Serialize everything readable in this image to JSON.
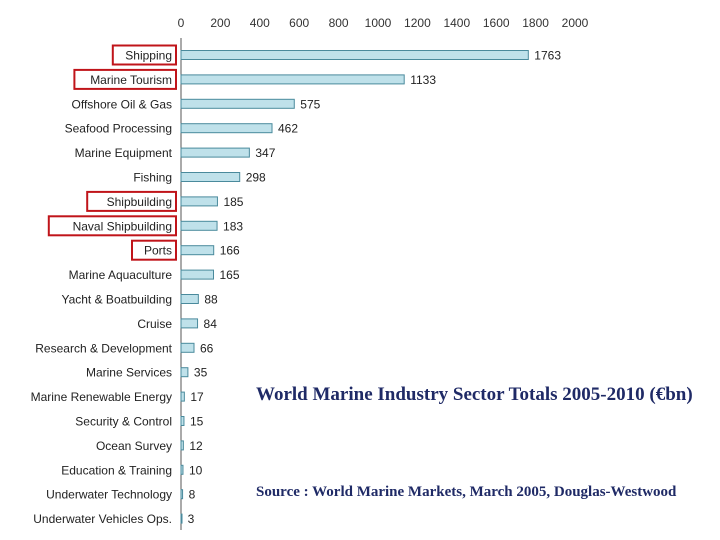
{
  "caption": {
    "title": "World Marine Industry Sector Totals 2005-2010 (€bn)",
    "source": "Source : World Marine Markets, March 2005, Douglas-Westwood"
  },
  "chart_data": {
    "type": "bar",
    "orientation": "horizontal",
    "categories": [
      "Shipping",
      "Marine Tourism",
      "Offshore Oil & Gas",
      "Seafood Processing",
      "Marine Equipment",
      "Fishing",
      "Shipbuilding",
      "Naval Shipbuilding",
      "Ports",
      "Marine Aquaculture",
      "Yacht & Boatbuilding",
      "Cruise",
      "Research & Development",
      "Marine Services",
      "Marine Renewable Energy",
      "Security & Control",
      "Ocean Survey",
      "Education & Training",
      "Underwater Technology",
      "Underwater Vehicles Ops."
    ],
    "values": [
      1763,
      1133,
      575,
      462,
      347,
      298,
      185,
      183,
      166,
      165,
      88,
      84,
      66,
      35,
      17,
      15,
      12,
      10,
      8,
      3
    ],
    "xlim": [
      0,
      2000
    ],
    "xticks": [
      "0",
      "200",
      "400",
      "600",
      "800",
      "1000",
      "1200",
      "1400",
      "1600",
      "1800",
      "2000"
    ],
    "highlighted": [
      "Shipping",
      "Marine Tourism",
      "Shipbuilding",
      "Naval Shipbuilding",
      "Ports"
    ],
    "colors": {
      "bar": "#bfe1ea",
      "bar_edge": "#4a8a9c",
      "highlight_box": "#c0141a"
    },
    "grid": false
  }
}
